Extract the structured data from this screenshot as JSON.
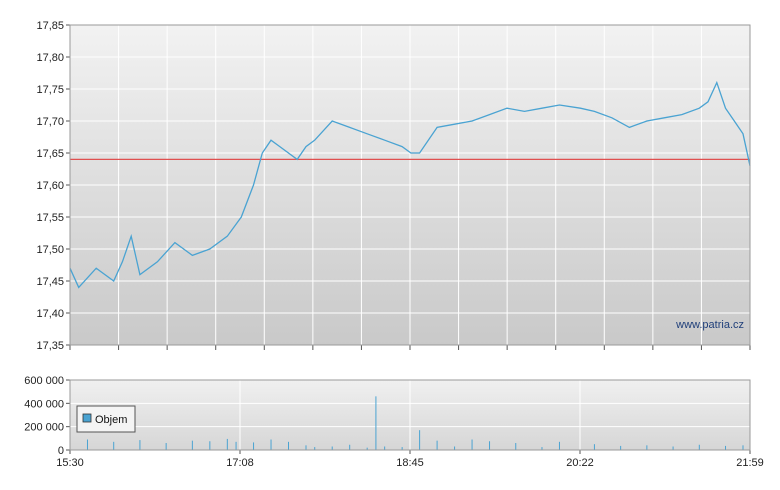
{
  "watermark": "www.patria.cz",
  "chart_data": [
    {
      "type": "line",
      "ylim": [
        17.35,
        17.85
      ],
      "y_ticks": [
        "17,35",
        "17,40",
        "17,45",
        "17,50",
        "17,55",
        "17,60",
        "17,65",
        "17,70",
        "17,75",
        "17,80",
        "17,85"
      ],
      "reference_line": 17.64,
      "grid": true,
      "series": [
        {
          "color": "#4aa3d2",
          "x": [
            "15:30",
            "15:35",
            "15:45",
            "15:55",
            "16:00",
            "16:05",
            "16:10",
            "16:20",
            "16:30",
            "16:40",
            "16:50",
            "17:00",
            "17:08",
            "17:15",
            "17:20",
            "17:25",
            "17:30",
            "17:40",
            "17:45",
            "17:50",
            "18:00",
            "18:10",
            "18:20",
            "18:30",
            "18:40",
            "18:45",
            "18:50",
            "19:00",
            "19:10",
            "19:20",
            "19:30",
            "19:40",
            "19:50",
            "20:00",
            "20:10",
            "20:22",
            "20:30",
            "20:40",
            "20:50",
            "21:00",
            "21:10",
            "21:20",
            "21:30",
            "21:35",
            "21:40",
            "21:45",
            "21:50",
            "21:55",
            "21:59"
          ],
          "values": [
            17.47,
            17.44,
            17.47,
            17.45,
            17.48,
            17.52,
            17.46,
            17.48,
            17.51,
            17.49,
            17.5,
            17.52,
            17.55,
            17.6,
            17.65,
            17.67,
            17.66,
            17.64,
            17.66,
            17.67,
            17.7,
            17.69,
            17.68,
            17.67,
            17.66,
            17.65,
            17.65,
            17.69,
            17.695,
            17.7,
            17.71,
            17.72,
            17.715,
            17.72,
            17.725,
            17.72,
            17.715,
            17.705,
            17.69,
            17.7,
            17.705,
            17.71,
            17.72,
            17.73,
            17.76,
            17.72,
            17.7,
            17.68,
            17.63
          ]
        }
      ]
    },
    {
      "type": "bar",
      "ylim": [
        0,
        600000
      ],
      "y_ticks": [
        "0",
        "200 000",
        "400 000",
        "600 000"
      ],
      "x_ticks": [
        "15:30",
        "17:08",
        "18:45",
        "20:22",
        "21:59"
      ],
      "grid": true,
      "legend": "top-left",
      "series": [
        {
          "name": "Objem",
          "color": "#4aa3d2",
          "x": [
            "15:40",
            "15:55",
            "16:10",
            "16:25",
            "16:40",
            "16:50",
            "17:00",
            "17:05",
            "17:15",
            "17:25",
            "17:35",
            "17:45",
            "17:50",
            "18:00",
            "18:10",
            "18:20",
            "18:25",
            "18:30",
            "18:40",
            "18:50",
            "19:00",
            "19:10",
            "19:20",
            "19:30",
            "19:45",
            "20:00",
            "20:10",
            "20:30",
            "20:45",
            "21:00",
            "21:15",
            "21:30",
            "21:45",
            "21:55"
          ],
          "values": [
            90000,
            70000,
            85000,
            60000,
            80000,
            75000,
            95000,
            70000,
            65000,
            90000,
            70000,
            40000,
            25000,
            30000,
            45000,
            20000,
            460000,
            30000,
            25000,
            170000,
            80000,
            30000,
            90000,
            75000,
            60000,
            25000,
            70000,
            50000,
            35000,
            40000,
            30000,
            45000,
            35000,
            40000
          ]
        }
      ]
    }
  ]
}
